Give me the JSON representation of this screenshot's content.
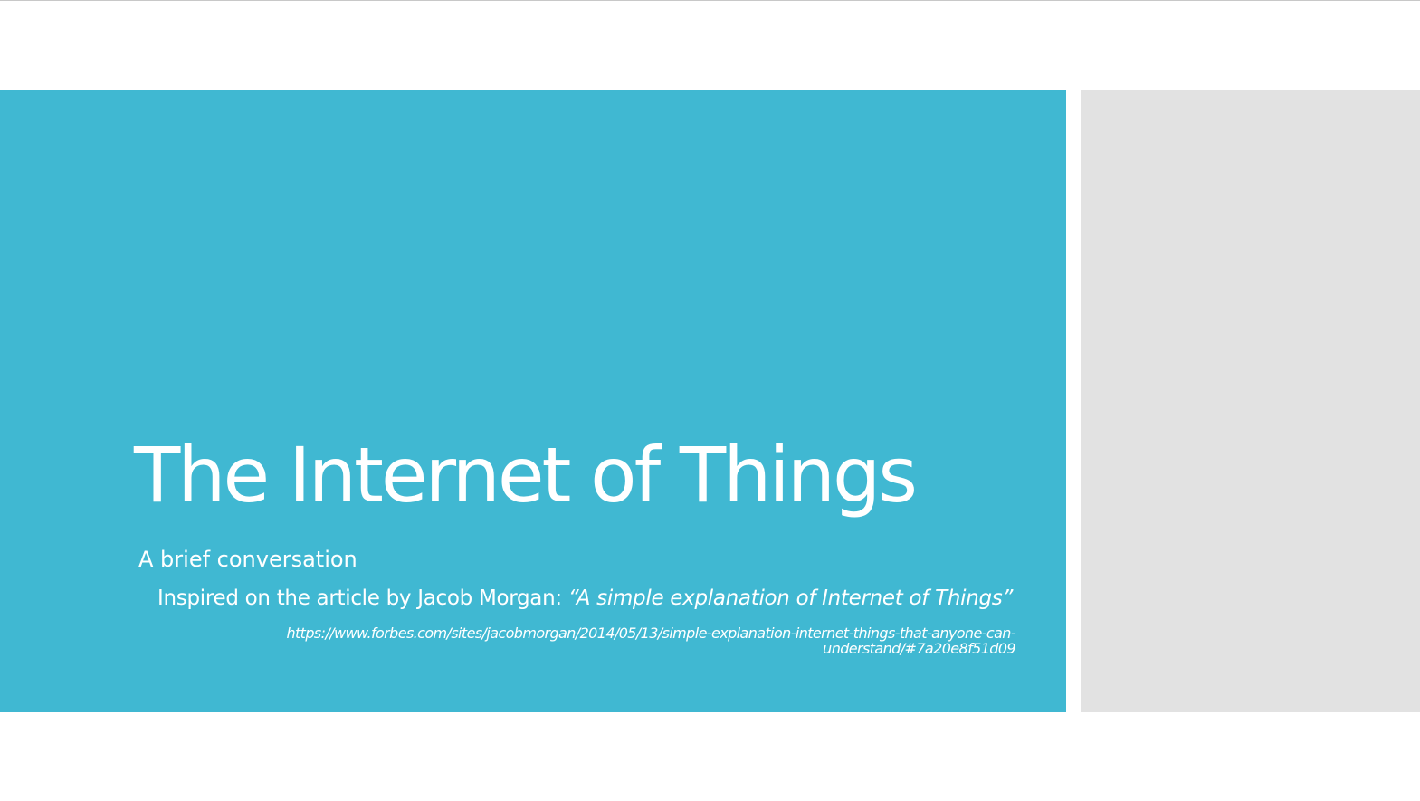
{
  "slide": {
    "title": "The Internet of Things",
    "subtitle": "A brief conversation",
    "inspired_prefix": "Inspired on  the article by Jacob Morgan: ",
    "inspired_quote": "“A simple explanation of Internet of Things”",
    "url_line1": "https://www.forbes.com/sites/jacobmorgan/2014/05/13/simple-explanation-internet-things-that-anyone-can-",
    "url_line2": "understand/#7a20e8f51d09"
  },
  "colors": {
    "accent_band": "#40b8d2",
    "side_panel": "#e2e2e2",
    "text": "#ffffff"
  }
}
